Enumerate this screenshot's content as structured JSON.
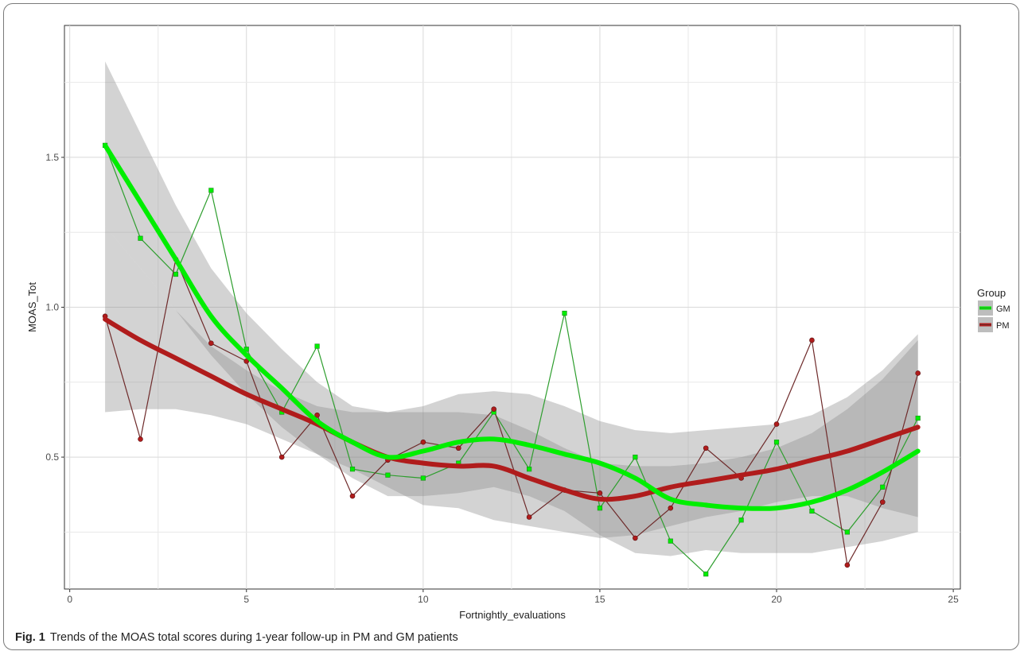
{
  "caption": {
    "label": "Fig. 1",
    "text": "Trends of the MOAS total scores during 1-year follow-up in PM and GM patients"
  },
  "chart_data": {
    "type": "line",
    "xlabel": "Fortnightly_evaluations",
    "ylabel": "MOAS_Tot",
    "xlim": [
      -0.15,
      25.2
    ],
    "ylim": [
      0.06,
      1.94
    ],
    "x_ticks": [
      0,
      5,
      10,
      15,
      20,
      25
    ],
    "y_ticks": [
      0.5,
      1.0,
      1.5
    ],
    "y_tick_labels": [
      "0.5",
      "1.0",
      "1.5"
    ],
    "grid": true,
    "legend": {
      "title": "Group",
      "position": "right"
    },
    "series": [
      {
        "name": "GM",
        "color": "#00ee00",
        "line_color": "#2e9e2e",
        "marker": "square",
        "x": [
          1,
          2,
          3,
          4,
          5,
          6,
          7,
          8,
          9,
          10,
          11,
          12,
          13,
          14,
          15,
          16,
          17,
          18,
          19,
          20,
          21,
          22,
          23,
          24
        ],
        "values": [
          1.54,
          1.23,
          1.11,
          1.39,
          0.86,
          0.65,
          0.87,
          0.46,
          0.44,
          0.43,
          0.48,
          0.65,
          0.46,
          0.98,
          0.33,
          0.5,
          0.22,
          0.11,
          0.29,
          0.55,
          0.32,
          0.25,
          0.4,
          0.63
        ],
        "smooth": [
          1.54,
          1.35,
          1.16,
          0.97,
          0.84,
          0.73,
          0.62,
          0.55,
          0.5,
          0.52,
          0.55,
          0.56,
          0.54,
          0.51,
          0.48,
          0.43,
          0.36,
          0.34,
          0.33,
          0.33,
          0.35,
          0.39,
          0.45,
          0.52
        ],
        "band_upper": [
          1.82,
          1.58,
          1.34,
          1.13,
          0.98,
          0.86,
          0.75,
          0.67,
          0.65,
          0.67,
          0.71,
          0.72,
          0.71,
          0.67,
          0.62,
          0.59,
          0.58,
          0.59,
          0.6,
          0.61,
          0.64,
          0.7,
          0.79,
          0.91
        ],
        "band_lower": [
          1.27,
          1.13,
          0.99,
          0.84,
          0.71,
          0.6,
          0.51,
          0.43,
          0.37,
          0.37,
          0.38,
          0.4,
          0.37,
          0.32,
          0.24,
          0.18,
          0.17,
          0.19,
          0.18,
          0.18,
          0.18,
          0.2,
          0.22,
          0.25
        ]
      },
      {
        "name": "PM",
        "color": "#b01c1c",
        "line_color": "#6e2a2a",
        "marker": "circle",
        "x": [
          1,
          2,
          3,
          4,
          5,
          6,
          7,
          8,
          9,
          10,
          11,
          12,
          13,
          14,
          15,
          16,
          17,
          18,
          19,
          20,
          21,
          22,
          23,
          24
        ],
        "values": [
          0.97,
          0.56,
          1.16,
          0.88,
          0.82,
          0.5,
          0.64,
          0.37,
          0.49,
          0.55,
          0.53,
          0.66,
          0.3,
          0.39,
          0.38,
          0.23,
          0.33,
          0.53,
          0.43,
          0.61,
          0.89,
          0.14,
          0.35,
          0.78
        ],
        "smooth": [
          0.96,
          0.89,
          0.83,
          0.77,
          0.71,
          0.66,
          0.61,
          0.55,
          0.5,
          0.48,
          0.47,
          0.47,
          0.43,
          0.39,
          0.36,
          0.37,
          0.4,
          0.42,
          0.44,
          0.46,
          0.49,
          0.52,
          0.56,
          0.6
        ],
        "band_upper": [
          1.27,
          1.13,
          0.99,
          0.87,
          0.79,
          0.72,
          0.67,
          0.65,
          0.65,
          0.65,
          0.65,
          0.64,
          0.59,
          0.53,
          0.48,
          0.47,
          0.47,
          0.48,
          0.5,
          0.53,
          0.58,
          0.66,
          0.76,
          0.89
        ],
        "band_lower": [
          0.65,
          0.66,
          0.66,
          0.64,
          0.61,
          0.56,
          0.51,
          0.46,
          0.4,
          0.34,
          0.33,
          0.29,
          0.27,
          0.25,
          0.23,
          0.24,
          0.27,
          0.3,
          0.32,
          0.35,
          0.37,
          0.37,
          0.33,
          0.3
        ]
      }
    ]
  }
}
